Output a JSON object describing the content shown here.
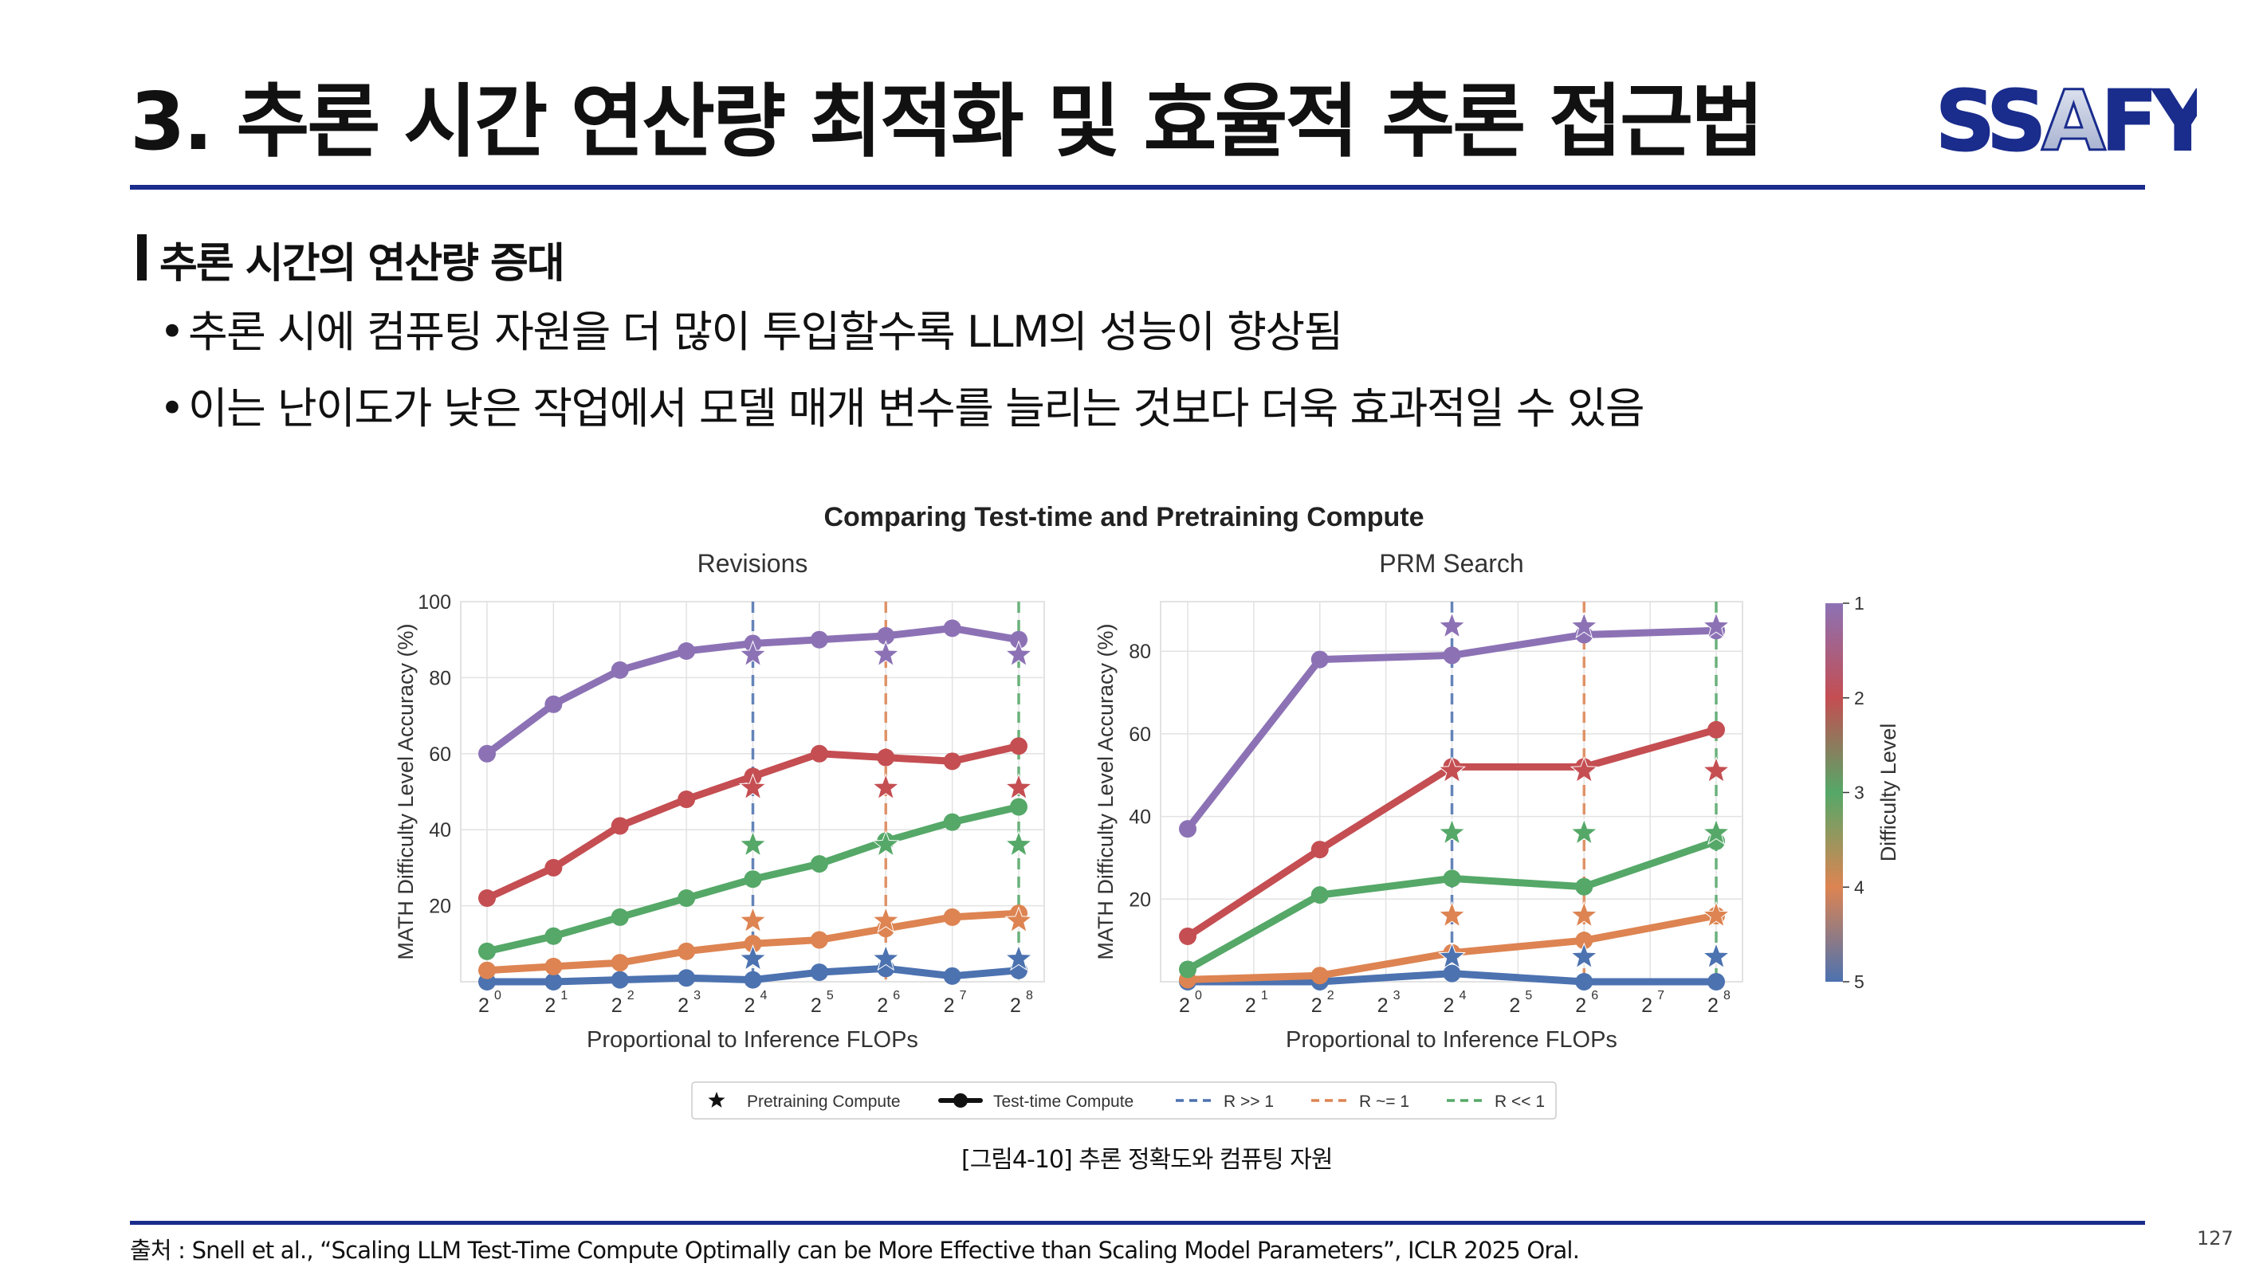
{
  "slide": {
    "title": "3. 추론 시간 연산량 최적화 및 효율적 추론 접근법",
    "logo_text": "SSAFY",
    "section_heading": "추론 시간의 연산량 증대",
    "bullets": [
      {
        "text": "추론 시에 컴퓨팅 자원을 더 많이 투입할수록 LLM의 성능이 향상됨"
      },
      {
        "text": "이는 난이도가 낮은 작업에서 모델 매개 변수를 늘리는 것보다 더욱 효과적일 수 있음"
      }
    ],
    "caption": "[그림4-10] 추론 정확도와 컴퓨팅 자원",
    "source": "출처 : Snell et al., “Scaling LLM Test-Time Compute Optimally can be More Effective than Scaling Model Parameters”, ICLR 2025 Oral.",
    "page_number": "127"
  },
  "colors": {
    "brand_blue": "#1a2c8c",
    "level_1": "#8c72b5",
    "level_2": "#c44e52",
    "level_3": "#55a868",
    "level_4": "#dd8452",
    "level_5": "#4c72b0"
  },
  "chart_data": {
    "type": "line",
    "title": "Comparing Test-time and Pretraining Compute",
    "x_tick_labels": [
      "0",
      "1",
      "2",
      "3",
      "4",
      "5",
      "6",
      "7",
      "8"
    ],
    "x_tick_base": "2",
    "xlabel": "Proportional to Inference FLOPs",
    "ylabel": "MATH Difficulty Level Accuracy (%)",
    "grid": true,
    "legend": {
      "placement": "bottom",
      "entries": [
        {
          "label": "Pretraining Compute",
          "kind": "star"
        },
        {
          "label": "Test-time Compute",
          "kind": "line"
        },
        {
          "label": "R >> 1",
          "kind": "dashed",
          "color": "#4c72b0"
        },
        {
          "label": "R ~= 1",
          "kind": "dashed",
          "color": "#dd8452"
        },
        {
          "label": "R << 1",
          "kind": "dashed",
          "color": "#55a868"
        }
      ]
    },
    "colorbar": {
      "label": "Difficulty Level",
      "ticks": [
        "1",
        "2",
        "3",
        "4",
        "5"
      ]
    },
    "panels": [
      {
        "subtitle": "Revisions",
        "ylim": [
          0,
          100
        ],
        "yticks": [
          "20",
          "40",
          "60",
          "80",
          "100"
        ],
        "ytick_values": [
          20,
          40,
          60,
          80,
          100
        ],
        "ratio_lines": [
          {
            "x": 4,
            "color": "#4c72b0"
          },
          {
            "x": 6,
            "color": "#dd8452"
          },
          {
            "x": 8,
            "color": "#55a868"
          }
        ],
        "series": [
          {
            "level": 1,
            "color": "#8c72b5",
            "x": [
              0,
              1,
              2,
              3,
              4,
              5,
              6,
              7,
              8
            ],
            "y": [
              60,
              73,
              82,
              87,
              89,
              90,
              91,
              93,
              90
            ]
          },
          {
            "level": 2,
            "color": "#c44e52",
            "x": [
              0,
              1,
              2,
              3,
              4,
              5,
              6,
              7,
              8
            ],
            "y": [
              22,
              30,
              41,
              48,
              54,
              60,
              59,
              58,
              62
            ]
          },
          {
            "level": 3,
            "color": "#55a868",
            "x": [
              0,
              1,
              2,
              3,
              4,
              5,
              6,
              7,
              8
            ],
            "y": [
              8,
              12,
              17,
              22,
              27,
              31,
              37,
              42,
              46
            ]
          },
          {
            "level": 4,
            "color": "#dd8452",
            "x": [
              0,
              1,
              2,
              3,
              4,
              5,
              6,
              7,
              8
            ],
            "y": [
              3,
              4,
              5,
              8,
              10,
              11,
              14,
              17,
              18
            ]
          },
          {
            "level": 5,
            "color": "#4c72b0",
            "x": [
              0,
              1,
              2,
              3,
              4,
              5,
              6,
              7,
              8
            ],
            "y": [
              0,
              0,
              0.5,
              1,
              0.5,
              2.5,
              3.5,
              1.5,
              3
            ]
          }
        ],
        "pretraining_stars": [
          {
            "level": 1,
            "color": "#8c72b5",
            "x": [
              4,
              6,
              8
            ],
            "y": [
              86,
              86,
              86
            ]
          },
          {
            "level": 2,
            "color": "#c44e52",
            "x": [
              4,
              6,
              8
            ],
            "y": [
              51,
              51,
              51
            ]
          },
          {
            "level": 3,
            "color": "#55a868",
            "x": [
              4,
              6,
              8
            ],
            "y": [
              36,
              36,
              36
            ]
          },
          {
            "level": 4,
            "color": "#dd8452",
            "x": [
              4,
              6,
              8
            ],
            "y": [
              16,
              16,
              16
            ]
          },
          {
            "level": 5,
            "color": "#4c72b0",
            "x": [
              4,
              6,
              8
            ],
            "y": [
              6,
              6,
              6
            ]
          }
        ]
      },
      {
        "subtitle": "PRM Search",
        "ylim": [
          0,
          92
        ],
        "yticks": [
          "20",
          "40",
          "60",
          "80"
        ],
        "ytick_values": [
          20,
          40,
          60,
          80
        ],
        "ratio_lines": [
          {
            "x": 4,
            "color": "#4c72b0"
          },
          {
            "x": 6,
            "color": "#dd8452"
          },
          {
            "x": 8,
            "color": "#55a868"
          }
        ],
        "series": [
          {
            "level": 1,
            "color": "#8c72b5",
            "x": [
              0,
              2,
              4,
              6,
              8
            ],
            "y": [
              37,
              78,
              79,
              84,
              85
            ]
          },
          {
            "level": 2,
            "color": "#c44e52",
            "x": [
              0,
              2,
              4,
              6,
              8
            ],
            "y": [
              11,
              32,
              52,
              52,
              61
            ]
          },
          {
            "level": 3,
            "color": "#55a868",
            "x": [
              0,
              2,
              4,
              6,
              8
            ],
            "y": [
              3,
              21,
              25,
              23,
              34
            ]
          },
          {
            "level": 4,
            "color": "#dd8452",
            "x": [
              0,
              2,
              4,
              6,
              8
            ],
            "y": [
              0.5,
              1.5,
              7,
              10,
              16
            ]
          },
          {
            "level": 5,
            "color": "#4c72b0",
            "x": [
              0,
              2,
              4,
              6,
              8
            ],
            "y": [
              0,
              0,
              2,
              0,
              0
            ]
          }
        ],
        "pretraining_stars": [
          {
            "level": 1,
            "color": "#8c72b5",
            "x": [
              4,
              6,
              8
            ],
            "y": [
              86,
              86,
              86
            ]
          },
          {
            "level": 2,
            "color": "#c44e52",
            "x": [
              4,
              6,
              8
            ],
            "y": [
              51,
              51,
              51
            ]
          },
          {
            "level": 3,
            "color": "#55a868",
            "x": [
              4,
              6,
              8
            ],
            "y": [
              36,
              36,
              36
            ]
          },
          {
            "level": 4,
            "color": "#dd8452",
            "x": [
              4,
              6,
              8
            ],
            "y": [
              16,
              16,
              16
            ]
          },
          {
            "level": 5,
            "color": "#4c72b0",
            "x": [
              4,
              6,
              8
            ],
            "y": [
              6,
              6,
              6
            ]
          }
        ]
      }
    ]
  }
}
